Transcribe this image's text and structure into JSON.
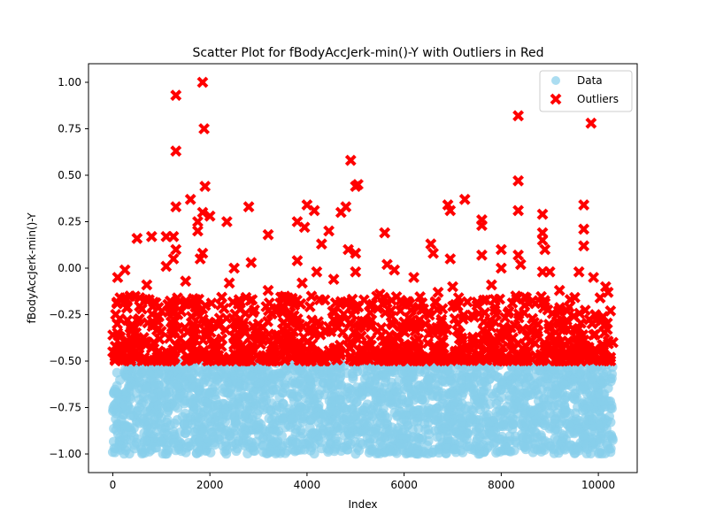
{
  "chart_data": {
    "type": "scatter",
    "title": "Scatter Plot for fBodyAccJerk-min()-Y with Outliers in Red",
    "xlabel": "Index",
    "ylabel": "fBodyAccJerk-min()-Y",
    "xlim": [
      -500,
      10800
    ],
    "ylim": [
      -1.1,
      1.1
    ],
    "x_ticks": [
      0,
      2000,
      4000,
      6000,
      8000,
      10000
    ],
    "y_ticks": [
      -1.0,
      -0.75,
      -0.5,
      -0.25,
      0.0,
      0.25,
      0.5,
      0.75,
      1.0
    ],
    "y_tick_labels": [
      "−1.00",
      "−0.75",
      "−0.50",
      "−0.25",
      "0.00",
      "0.25",
      "0.50",
      "0.75",
      "1.00"
    ],
    "grid": false,
    "legend_position": "top-right",
    "outlier_threshold": -0.5,
    "x_range": [
      0,
      10299
    ],
    "series": [
      {
        "name": "Data",
        "color": "#87ceeb",
        "marker": "circle",
        "y_range": [
          -1.0,
          -0.5
        ],
        "points": [
          [
            0,
            -0.99
          ],
          [
            60,
            -0.97
          ],
          [
            150,
            -0.93
          ],
          [
            200,
            -0.68
          ],
          [
            260,
            -0.85
          ],
          [
            300,
            -0.58
          ],
          [
            310,
            -0.52
          ],
          [
            500,
            -0.79
          ],
          [
            700,
            -0.9
          ],
          [
            900,
            -0.62
          ],
          [
            1150,
            -0.55
          ],
          [
            1300,
            -0.98
          ],
          [
            1500,
            -0.71
          ],
          [
            1700,
            -0.88
          ],
          [
            1900,
            -0.6
          ],
          [
            2100,
            -0.95
          ],
          [
            2300,
            -0.76
          ],
          [
            2550,
            -0.53
          ],
          [
            2700,
            -0.84
          ],
          [
            2900,
            -0.67
          ],
          [
            3100,
            -0.99
          ],
          [
            3300,
            -0.58
          ],
          [
            3500,
            -0.81
          ],
          [
            3700,
            -0.92
          ],
          [
            3900,
            -0.65
          ],
          [
            4100,
            -0.74
          ],
          [
            4300,
            -0.97
          ],
          [
            4500,
            -0.56
          ],
          [
            4700,
            -0.86
          ],
          [
            4900,
            -0.7
          ],
          [
            5100,
            -0.94
          ],
          [
            5300,
            -0.61
          ],
          [
            5500,
            -0.52
          ],
          [
            5700,
            -0.89
          ],
          [
            5900,
            -0.77
          ],
          [
            6100,
            -0.99
          ],
          [
            6300,
            -0.63
          ],
          [
            6500,
            -0.83
          ],
          [
            6700,
            -0.57
          ],
          [
            6900,
            -0.91
          ],
          [
            7100,
            -0.69
          ],
          [
            7300,
            -0.96
          ],
          [
            7500,
            -0.54
          ],
          [
            7700,
            -0.8
          ],
          [
            7900,
            -0.73
          ],
          [
            8100,
            -0.98
          ],
          [
            8300,
            -0.59
          ],
          [
            8500,
            -0.87
          ],
          [
            8700,
            -0.66
          ],
          [
            8900,
            -0.93
          ],
          [
            9100,
            -0.55
          ],
          [
            9300,
            -0.78
          ],
          [
            9500,
            -0.97
          ],
          [
            9700,
            -0.64
          ],
          [
            9900,
            -0.85
          ],
          [
            10100,
            -0.72
          ],
          [
            10250,
            -0.99
          ],
          [
            10280,
            -0.57
          ]
        ]
      },
      {
        "name": "Outliers",
        "color": "#ff0000",
        "marker": "x",
        "points": [
          [
            1850,
            1.0
          ],
          [
            1300,
            0.93
          ],
          [
            8350,
            0.82
          ],
          [
            9850,
            0.78
          ],
          [
            1880,
            0.75
          ],
          [
            1300,
            0.63
          ],
          [
            4900,
            0.58
          ],
          [
            8350,
            0.47
          ],
          [
            1900,
            0.44
          ],
          [
            5050,
            0.45
          ],
          [
            1600,
            0.37
          ],
          [
            7250,
            0.37
          ],
          [
            9700,
            0.34
          ],
          [
            5000,
            0.44
          ],
          [
            6900,
            0.34
          ],
          [
            1300,
            0.33
          ],
          [
            2800,
            0.33
          ],
          [
            4800,
            0.33
          ],
          [
            4000,
            0.34
          ],
          [
            8350,
            0.31
          ],
          [
            4150,
            0.31
          ],
          [
            1850,
            0.3
          ],
          [
            6950,
            0.31
          ],
          [
            4700,
            0.3
          ],
          [
            8850,
            0.29
          ],
          [
            2000,
            0.28
          ],
          [
            3800,
            0.25
          ],
          [
            2350,
            0.25
          ],
          [
            7600,
            0.26
          ],
          [
            1750,
            0.25
          ],
          [
            7600,
            0.23
          ],
          [
            4450,
            0.2
          ],
          [
            3950,
            0.22
          ],
          [
            1750,
            0.2
          ],
          [
            5600,
            0.19
          ],
          [
            8850,
            0.19
          ],
          [
            3200,
            0.18
          ],
          [
            9700,
            0.21
          ],
          [
            800,
            0.17
          ],
          [
            1100,
            0.17
          ],
          [
            1250,
            0.17
          ],
          [
            500,
            0.16
          ],
          [
            4300,
            0.13
          ],
          [
            6550,
            0.13
          ],
          [
            8850,
            0.15
          ],
          [
            9700,
            0.12
          ],
          [
            1300,
            0.1
          ],
          [
            8900,
            0.1
          ],
          [
            1850,
            0.08
          ],
          [
            4850,
            0.1
          ],
          [
            5000,
            0.08
          ],
          [
            8000,
            0.1
          ],
          [
            6600,
            0.08
          ],
          [
            1800,
            0.05
          ],
          [
            3800,
            0.04
          ],
          [
            7600,
            0.07
          ],
          [
            8350,
            0.07
          ],
          [
            6950,
            0.05
          ],
          [
            2850,
            0.03
          ],
          [
            5650,
            0.02
          ],
          [
            8400,
            0.02
          ],
          [
            1250,
            0.05
          ],
          [
            2500,
            0.0
          ],
          [
            4200,
            -0.02
          ],
          [
            5800,
            -0.01
          ],
          [
            1100,
            0.01
          ],
          [
            8850,
            -0.02
          ],
          [
            9000,
            -0.02
          ],
          [
            9600,
            -0.02
          ],
          [
            250,
            -0.01
          ],
          [
            100,
            -0.05
          ],
          [
            5000,
            -0.02
          ],
          [
            6200,
            -0.05
          ],
          [
            8000,
            0.0
          ],
          [
            9900,
            -0.05
          ],
          [
            3900,
            -0.08
          ],
          [
            700,
            -0.09
          ],
          [
            1500,
            -0.07
          ],
          [
            2400,
            -0.08
          ],
          [
            4550,
            -0.06
          ],
          [
            7000,
            -0.1
          ],
          [
            7800,
            -0.09
          ],
          [
            10150,
            -0.1
          ],
          [
            3200,
            -0.12
          ],
          [
            5500,
            -0.14
          ],
          [
            6700,
            -0.13
          ],
          [
            8300,
            -0.15
          ],
          [
            9200,
            -0.12
          ],
          [
            10200,
            -0.13
          ],
          [
            150,
            -0.16
          ],
          [
            2600,
            -0.17
          ],
          [
            4700,
            -0.18
          ],
          [
            6050,
            -0.18
          ],
          [
            7500,
            -0.2
          ],
          [
            8700,
            -0.19
          ],
          [
            9400,
            -0.21
          ],
          [
            600,
            -0.22
          ],
          [
            1700,
            -0.21
          ],
          [
            3500,
            -0.23
          ],
          [
            5300,
            -0.24
          ],
          [
            6400,
            -0.22
          ],
          [
            7900,
            -0.25
          ],
          [
            10250,
            -0.23
          ],
          [
            300,
            -0.28
          ],
          [
            1200,
            -0.29
          ],
          [
            2200,
            -0.27
          ],
          [
            3000,
            -0.3
          ],
          [
            4100,
            -0.28
          ],
          [
            5100,
            -0.31
          ],
          [
            6000,
            -0.29
          ],
          [
            7100,
            -0.3
          ],
          [
            8200,
            -0.32
          ],
          [
            9300,
            -0.31
          ],
          [
            9950,
            -0.28
          ],
          [
            450,
            -0.35
          ],
          [
            1000,
            -0.34
          ],
          [
            1900,
            -0.36
          ],
          [
            2700,
            -0.33
          ],
          [
            3600,
            -0.37
          ],
          [
            4400,
            -0.34
          ],
          [
            5700,
            -0.36
          ],
          [
            6800,
            -0.35
          ],
          [
            7700,
            -0.37
          ],
          [
            8600,
            -0.34
          ],
          [
            9600,
            -0.36
          ],
          [
            10300,
            -0.4
          ],
          [
            0,
            -0.45
          ],
          [
            200,
            -0.42
          ],
          [
            800,
            -0.43
          ],
          [
            1400,
            -0.44
          ],
          [
            2100,
            -0.41
          ],
          [
            2500,
            -0.46
          ],
          [
            3300,
            -0.42
          ],
          [
            3900,
            -0.45
          ],
          [
            4600,
            -0.43
          ],
          [
            5200,
            -0.47
          ],
          [
            5900,
            -0.42
          ],
          [
            6300,
            -0.44
          ],
          [
            7300,
            -0.43
          ],
          [
            8000,
            -0.46
          ],
          [
            8900,
            -0.42
          ],
          [
            9500,
            -0.45
          ],
          [
            10100,
            -0.44
          ],
          [
            50,
            -0.49
          ],
          [
            650,
            -0.48
          ],
          [
            1550,
            -0.49
          ],
          [
            2400,
            -0.48
          ],
          [
            3100,
            -0.49
          ],
          [
            4200,
            -0.48
          ],
          [
            5000,
            -0.49
          ],
          [
            5800,
            -0.48
          ],
          [
            6600,
            -0.49
          ],
          [
            7500,
            -0.48
          ],
          [
            8400,
            -0.49
          ],
          [
            9200,
            -0.48
          ],
          [
            9800,
            -0.49
          ],
          [
            10250,
            -0.48
          ]
        ]
      }
    ],
    "legend": [
      {
        "label": "Data",
        "marker": "circle",
        "color": "#87ceeb"
      },
      {
        "label": "Outliers",
        "marker": "x",
        "color": "#ff0000"
      }
    ]
  }
}
